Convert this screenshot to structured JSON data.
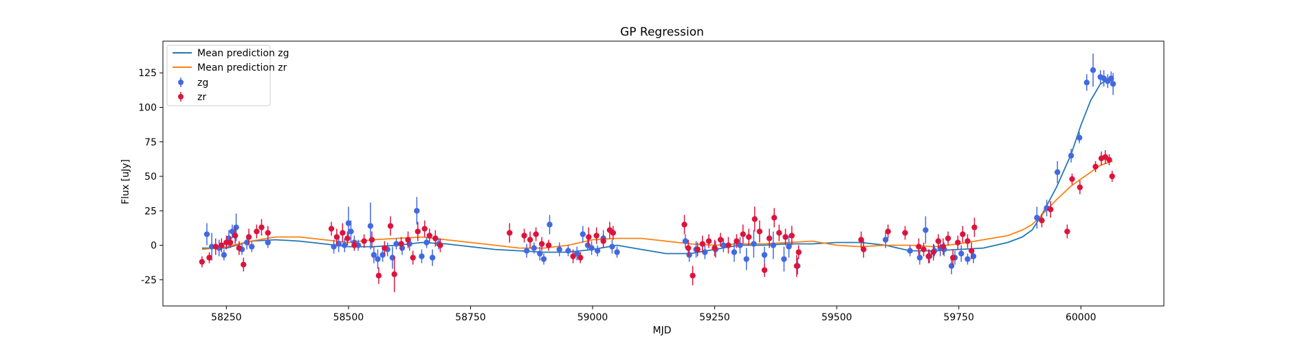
{
  "chart_data": {
    "type": "scatter",
    "title": "GP Regression",
    "xlabel": "MJD",
    "ylabel": "Flux [uJy]",
    "xlim": [
      58120,
      60170
    ],
    "ylim": [
      -44,
      148
    ],
    "xticks": [
      58250,
      58500,
      58750,
      59000,
      59250,
      59500,
      59750,
      60000
    ],
    "yticks": [
      -25,
      0,
      25,
      50,
      75,
      100,
      125
    ],
    "legend_position": "top-left",
    "series": [
      {
        "name": "Mean prediction zg",
        "kind": "line",
        "color": "#1f77b4",
        "x": [
          58200,
          58250,
          58300,
          58350,
          58400,
          58450,
          58500,
          58550,
          58600,
          58650,
          58700,
          58750,
          58800,
          58850,
          58900,
          58950,
          59000,
          59050,
          59100,
          59150,
          59200,
          59250,
          59300,
          59350,
          59400,
          59450,
          59500,
          59550,
          59600,
          59650,
          59700,
          59750,
          59800,
          59850,
          59880,
          59900,
          59920,
          59950,
          59980,
          60000,
          60020,
          60040,
          60065
        ],
        "y": [
          -2,
          -2,
          3,
          4,
          3,
          1,
          -1,
          -1,
          0,
          2,
          1,
          -1,
          -3,
          -4,
          -5,
          -5,
          -3,
          0,
          -3,
          -6,
          -6,
          -3,
          0,
          0,
          1,
          1,
          2,
          2,
          0,
          -4,
          -4,
          -3,
          -2,
          2,
          6,
          11,
          22,
          42,
          66,
          87,
          105,
          117,
          122
        ]
      },
      {
        "name": "Mean prediction zr",
        "kind": "line",
        "color": "#ff7f0e",
        "x": [
          58200,
          58250,
          58300,
          58350,
          58400,
          58450,
          58500,
          58550,
          58600,
          58650,
          58700,
          58750,
          58800,
          58850,
          58900,
          58950,
          59000,
          59050,
          59100,
          59150,
          59200,
          59250,
          59300,
          59350,
          59400,
          59450,
          59500,
          59550,
          59600,
          59650,
          59700,
          59750,
          59800,
          59850,
          59880,
          59900,
          59920,
          59950,
          59980,
          60000,
          60020,
          60040,
          60065
        ],
        "y": [
          -3,
          -1,
          3,
          6,
          6,
          4,
          2,
          4,
          5,
          6,
          4,
          2,
          0,
          -2,
          -2,
          0,
          4,
          5,
          5,
          3,
          1,
          0,
          1,
          1,
          2,
          3,
          0,
          -1,
          0,
          0,
          -1,
          1,
          4,
          7,
          11,
          15,
          22,
          33,
          43,
          48,
          53,
          58,
          61
        ]
      },
      {
        "name": "zg",
        "kind": "errorbar",
        "color": "#4169e1",
        "x": [
          58210,
          58220,
          58235,
          58245,
          58255,
          58262,
          58270,
          58282,
          58292,
          58302,
          58335,
          58470,
          58480,
          58492,
          58500,
          58505,
          58512,
          58520,
          58545,
          58552,
          58560,
          58570,
          58580,
          58590,
          58598,
          58610,
          58625,
          58640,
          58650,
          58660,
          58672,
          58685,
          58865,
          58880,
          58892,
          58900,
          58912,
          58932,
          58950,
          58968,
          58980,
          58990,
          58998,
          59010,
          59022,
          59040,
          59050,
          59190,
          59198,
          59212,
          59230,
          59252,
          59268,
          59290,
          59302,
          59315,
          59330,
          59352,
          59370,
          59392,
          59402,
          59420,
          59600,
          59650,
          59670,
          59682,
          59690,
          59700,
          59712,
          59720,
          59735,
          59742,
          59755,
          59768,
          59780,
          59910,
          59930,
          59952,
          59980,
          59997,
          60012,
          60025,
          60040,
          60047,
          60055,
          60062,
          60066
        ],
        "y": [
          8,
          -1,
          -2,
          -7,
          5,
          10,
          13,
          -3,
          2,
          -1,
          2,
          -1,
          1,
          0,
          16,
          10,
          2,
          0,
          14,
          -7,
          -10,
          -7,
          -3,
          -9,
          1,
          -2,
          1,
          25,
          -8,
          2,
          -9,
          1,
          -4,
          -2,
          -6,
          -10,
          15,
          -3,
          -4,
          -6,
          8,
          0,
          -2,
          -4,
          5,
          -1,
          -5,
          3,
          -7,
          -3,
          -5,
          -3,
          0,
          -5,
          0,
          -10,
          1,
          -7,
          0,
          -10,
          -1,
          -15,
          4,
          -4,
          -9,
          11,
          -8,
          -4,
          -2,
          -3,
          -15,
          -9,
          -6,
          -10,
          -8,
          20,
          27,
          53,
          65,
          78,
          118,
          127,
          122,
          121,
          119,
          121,
          117
        ],
        "err": [
          8,
          10,
          6,
          4,
          6,
          5,
          10,
          4,
          5,
          4,
          4,
          5,
          6,
          5,
          12,
          8,
          5,
          4,
          17,
          6,
          7,
          5,
          5,
          8,
          4,
          5,
          5,
          10,
          5,
          4,
          6,
          4,
          5,
          4,
          5,
          4,
          7,
          5,
          4,
          5,
          6,
          4,
          5,
          4,
          6,
          5,
          4,
          5,
          5,
          6,
          5,
          6,
          5,
          7,
          6,
          8,
          10,
          6,
          10,
          9,
          8,
          6,
          6,
          4,
          5,
          10,
          5,
          4,
          6,
          5,
          6,
          5,
          6,
          4,
          5,
          8,
          6,
          8,
          5,
          4,
          6,
          12,
          5,
          6,
          5,
          5,
          8
        ]
      },
      {
        "name": "zr",
        "kind": "errorbar",
        "color": "#dc143c",
        "x": [
          58200,
          58215,
          58228,
          58240,
          58250,
          58258,
          58268,
          58276,
          58285,
          58296,
          58312,
          58322,
          58335,
          58465,
          58476,
          58488,
          58498,
          58512,
          58532,
          58548,
          58562,
          58574,
          58586,
          58594,
          58608,
          58622,
          58632,
          58642,
          58656,
          58666,
          58678,
          58688,
          58830,
          58860,
          58872,
          58884,
          58896,
          58910,
          58960,
          58975,
          58992,
          59008,
          59022,
          59035,
          59042,
          59188,
          59196,
          59205,
          59215,
          59225,
          59238,
          59250,
          59262,
          59278,
          59295,
          59308,
          59320,
          59332,
          59342,
          59352,
          59362,
          59372,
          59382,
          59395,
          59408,
          59418,
          59422,
          59550,
          59555,
          59605,
          59640,
          59668,
          59678,
          59688,
          59698,
          59708,
          59718,
          59728,
          59738,
          59748,
          59758,
          59768,
          59776,
          59782,
          59920,
          59938,
          59972,
          59998,
          59982,
          60030,
          60042,
          60050,
          60058,
          60064
        ],
        "y": [
          -12,
          -9,
          -1,
          0,
          2,
          2,
          7,
          -2,
          -14,
          6,
          10,
          13,
          9,
          12,
          6,
          9,
          5,
          0,
          3,
          4,
          -22,
          -2,
          14,
          -21,
          1,
          4,
          -9,
          10,
          12,
          7,
          5,
          0,
          9,
          7,
          4,
          8,
          1,
          0,
          -8,
          -9,
          6,
          7,
          3,
          11,
          9,
          15,
          -2,
          -22,
          -3,
          1,
          3,
          -2,
          4,
          0,
          3,
          8,
          6,
          19,
          10,
          -18,
          5,
          20,
          9,
          6,
          7,
          -15,
          -5,
          4,
          -3,
          10,
          9,
          -1,
          -3,
          -8,
          -5,
          3,
          -1,
          5,
          -9,
          2,
          8,
          3,
          -4,
          13,
          18,
          26,
          10,
          42,
          48,
          57,
          63,
          64,
          62,
          50
        ],
        "err": [
          4,
          4,
          6,
          5,
          5,
          4,
          6,
          5,
          5,
          6,
          5,
          6,
          5,
          5,
          6,
          7,
          5,
          4,
          5,
          6,
          6,
          5,
          7,
          13,
          5,
          6,
          5,
          7,
          6,
          5,
          6,
          5,
          7,
          5,
          6,
          5,
          5,
          4,
          5,
          4,
          7,
          6,
          5,
          6,
          5,
          7,
          6,
          7,
          5,
          6,
          5,
          6,
          5,
          6,
          5,
          7,
          6,
          9,
          8,
          5,
          7,
          7,
          6,
          6,
          7,
          8,
          5,
          6,
          6,
          5,
          5,
          6,
          5,
          5,
          6,
          5,
          6,
          5,
          6,
          5,
          6,
          5,
          6,
          7,
          5,
          6,
          5,
          5,
          4,
          4,
          5,
          5,
          4,
          4
        ]
      }
    ]
  }
}
